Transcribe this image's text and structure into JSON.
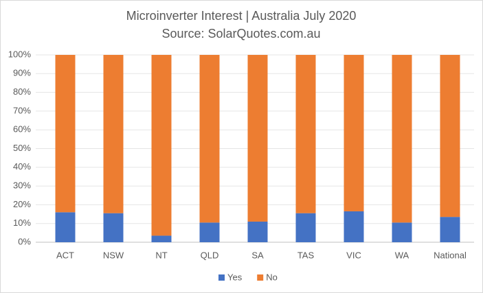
{
  "chart_data": {
    "type": "stacked_bar",
    "title": "Microinverter  Interest | Australia July 2020",
    "subtitle": "Source: SolarQuotes.com.au",
    "categories": [
      "ACT",
      "NSW",
      "NT",
      "QLD",
      "SA",
      "TAS",
      "VIC",
      "WA",
      "National"
    ],
    "series": [
      {
        "name": "Yes",
        "color": "#4472c4",
        "values": [
          16,
          15.5,
          3.5,
          10.5,
          11,
          15.5,
          16.5,
          10.5,
          13.5
        ]
      },
      {
        "name": "No",
        "color": "#ed7d31",
        "values": [
          84,
          84.5,
          96.5,
          89.5,
          89,
          84.5,
          83.5,
          89.5,
          86.5
        ]
      }
    ],
    "ylim": [
      0,
      100
    ],
    "yticks": [
      {
        "value": 0,
        "label": "0%"
      },
      {
        "value": 10,
        "label": "10%"
      },
      {
        "value": 20,
        "label": "20%"
      },
      {
        "value": 30,
        "label": "30%"
      },
      {
        "value": 40,
        "label": "40%"
      },
      {
        "value": 50,
        "label": "50%"
      },
      {
        "value": 60,
        "label": "60%"
      },
      {
        "value": 70,
        "label": "70%"
      },
      {
        "value": 80,
        "label": "80%"
      },
      {
        "value": 90,
        "label": "90%"
      },
      {
        "value": 100,
        "label": "100%"
      }
    ],
    "grid": true,
    "legend": "bottom"
  }
}
